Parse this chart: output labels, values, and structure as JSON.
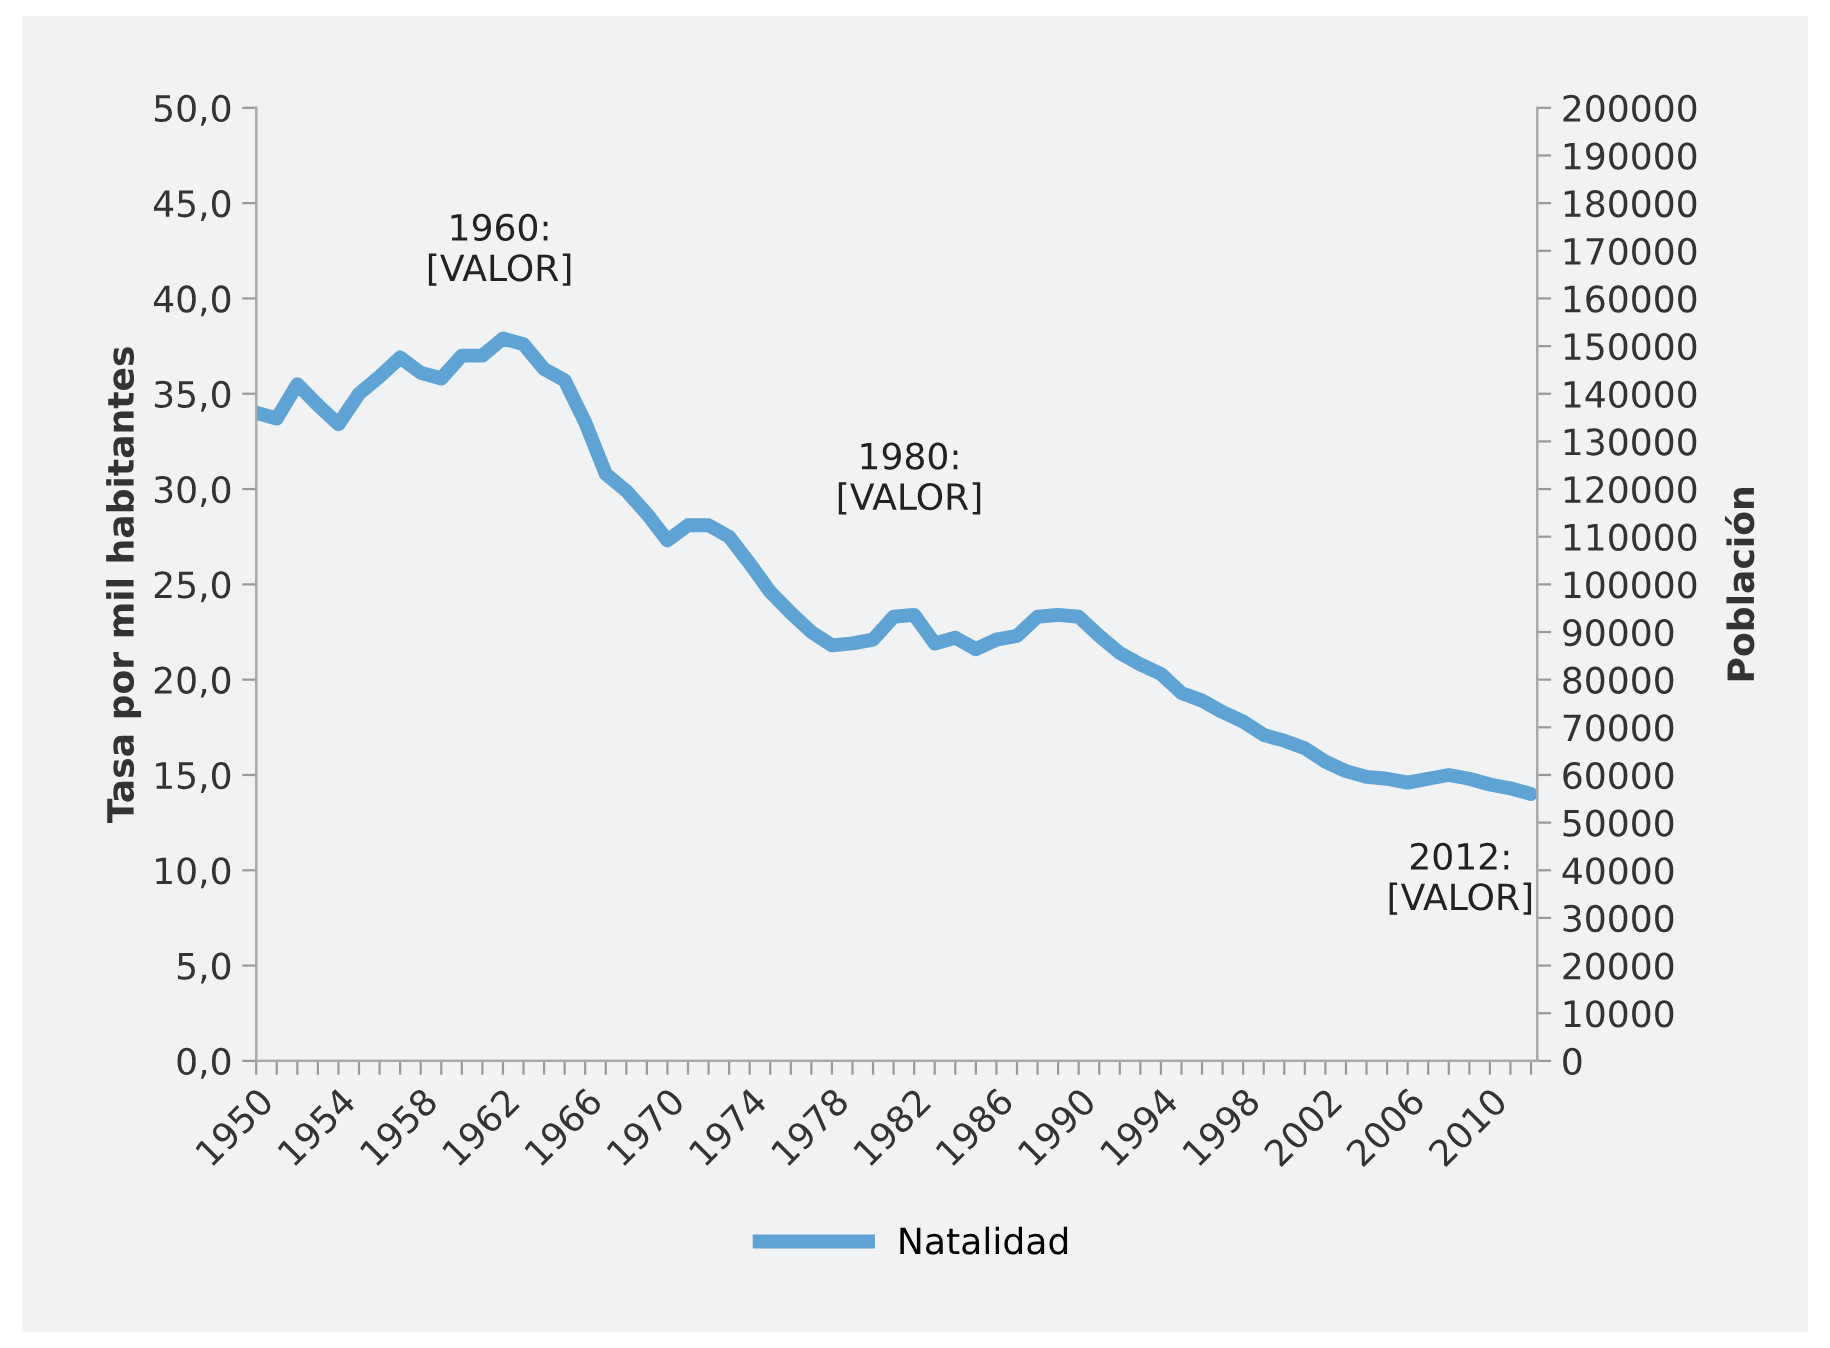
{
  "chart_data": {
    "type": "line",
    "xlabel": null,
    "ylabel": "Tasa por mil habitantes",
    "y2label": "Población",
    "x": [
      1950,
      1951,
      1952,
      1953,
      1954,
      1955,
      1956,
      1957,
      1958,
      1959,
      1960,
      1961,
      1962,
      1963,
      1964,
      1965,
      1966,
      1967,
      1968,
      1969,
      1970,
      1971,
      1972,
      1973,
      1974,
      1975,
      1976,
      1977,
      1978,
      1979,
      1980,
      1981,
      1982,
      1983,
      1984,
      1985,
      1986,
      1987,
      1988,
      1989,
      1990,
      1991,
      1992,
      1993,
      1994,
      1995,
      1996,
      1997,
      1998,
      1999,
      2000,
      2001,
      2002,
      2003,
      2004,
      2005,
      2006,
      2007,
      2008,
      2009,
      2010,
      2011,
      2012
    ],
    "series": [
      {
        "name": "Natalidad",
        "color": "#5fa2d4",
        "values": [
          34.0,
          33.7,
          35.5,
          34.4,
          33.4,
          35.0,
          35.9,
          36.9,
          36.1,
          35.8,
          37.0,
          37.0,
          37.9,
          37.6,
          36.3,
          35.7,
          33.5,
          30.8,
          29.9,
          28.7,
          27.3,
          28.1,
          28.1,
          27.5,
          26.1,
          24.6,
          23.5,
          22.5,
          21.8,
          21.9,
          22.1,
          23.3,
          23.4,
          21.9,
          22.2,
          21.6,
          22.1,
          22.3,
          23.3,
          23.4,
          23.3,
          22.3,
          21.4,
          20.8,
          20.3,
          19.3,
          18.9,
          18.3,
          17.8,
          17.1,
          16.8,
          16.4,
          15.7,
          15.2,
          14.9,
          14.8,
          14.6,
          14.8,
          15.0,
          14.8,
          14.5,
          14.3,
          14.0
        ]
      }
    ],
    "xlim": [
      1950,
      2012.3
    ],
    "xticks": [
      1950,
      {
        "value": 1951,
        "label": null
      },
      {
        "value": 1952,
        "label": null
      },
      {
        "value": 1953,
        "label": null
      },
      1954,
      {
        "value": 1955,
        "label": null
      },
      {
        "value": 1956,
        "label": null
      },
      {
        "value": 1957,
        "label": null
      },
      1958,
      {
        "value": 1959,
        "label": null
      },
      {
        "value": 1960,
        "label": null
      },
      {
        "value": 1961,
        "label": null
      },
      1962,
      {
        "value": 1963,
        "label": null
      },
      {
        "value": 1964,
        "label": null
      },
      {
        "value": 1965,
        "label": null
      },
      1966,
      {
        "value": 1967,
        "label": null
      },
      {
        "value": 1968,
        "label": null
      },
      {
        "value": 1969,
        "label": null
      },
      1970,
      {
        "value": 1971,
        "label": null
      },
      {
        "value": 1972,
        "label": null
      },
      {
        "value": 1973,
        "label": null
      },
      1974,
      {
        "value": 1975,
        "label": null
      },
      {
        "value": 1976,
        "label": null
      },
      {
        "value": 1977,
        "label": null
      },
      1978,
      {
        "value": 1979,
        "label": null
      },
      {
        "value": 1980,
        "label": null
      },
      {
        "value": 1981,
        "label": null
      },
      1982,
      {
        "value": 1983,
        "label": null
      },
      {
        "value": 1984,
        "label": null
      },
      {
        "value": 1985,
        "label": null
      },
      1986,
      {
        "value": 1987,
        "label": null
      },
      {
        "value": 1988,
        "label": null
      },
      {
        "value": 1989,
        "label": null
      },
      1990,
      {
        "value": 1991,
        "label": null
      },
      {
        "value": 1992,
        "label": null
      },
      {
        "value": 1993,
        "label": null
      },
      1994,
      {
        "value": 1995,
        "label": null
      },
      {
        "value": 1996,
        "label": null
      },
      {
        "value": 1997,
        "label": null
      },
      1998,
      {
        "value": 1999,
        "label": null
      },
      {
        "value": 2000,
        "label": null
      },
      {
        "value": 2001,
        "label": null
      },
      2002,
      {
        "value": 2003,
        "label": null
      },
      {
        "value": 2004,
        "label": null
      },
      {
        "value": 2005,
        "label": null
      },
      2006,
      {
        "value": 2007,
        "label": null
      },
      {
        "value": 2008,
        "label": null
      },
      {
        "value": 2009,
        "label": null
      },
      2010,
      {
        "value": 2011,
        "label": null
      },
      {
        "value": 2012,
        "label": null
      }
    ],
    "ylim": [
      0,
      50
    ],
    "yticks": [
      {
        "value": 0,
        "label": "0,0"
      },
      {
        "value": 5,
        "label": "5,0"
      },
      {
        "value": 10,
        "label": "10,0"
      },
      {
        "value": 15,
        "label": "15,0"
      },
      {
        "value": 20,
        "label": "20,0"
      },
      {
        "value": 25,
        "label": "25,0"
      },
      {
        "value": 30,
        "label": "30,0"
      },
      {
        "value": 35,
        "label": "35,0"
      },
      {
        "value": 40,
        "label": "40,0"
      },
      {
        "value": 45,
        "label": "45,0"
      },
      {
        "value": 50,
        "label": "50,0"
      }
    ],
    "y2lim": [
      0,
      200000
    ],
    "y2ticks": [
      0,
      10000,
      20000,
      30000,
      40000,
      50000,
      60000,
      70000,
      80000,
      90000,
      100000,
      110000,
      120000,
      130000,
      140000,
      150000,
      160000,
      170000,
      180000,
      190000,
      200000
    ],
    "annotations": [
      "1960:\n[VALOR]",
      "1980:\n[VALOR]",
      "2012:\n[VALOR]"
    ],
    "grid": false,
    "legend": "bottom",
    "marker": "none",
    "line_style": "solid"
  }
}
